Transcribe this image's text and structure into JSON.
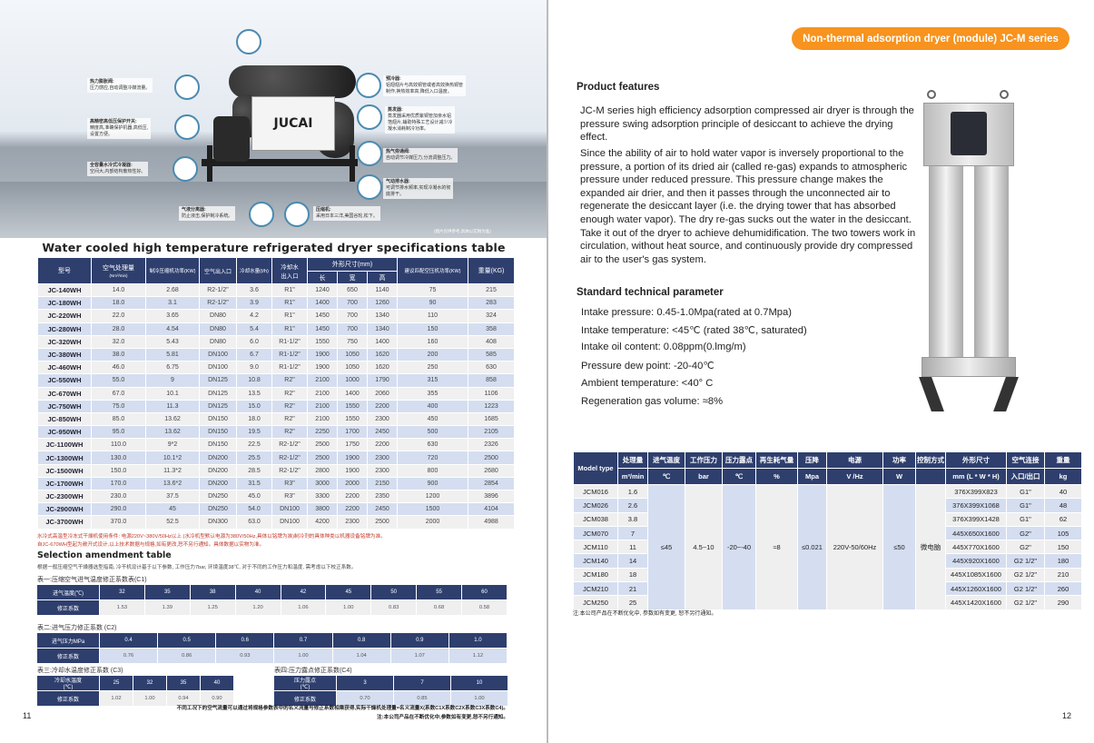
{
  "left_page": {
    "hero": {
      "logo": "JUCAI",
      "callouts": [
        {
          "title": "热力膨胀阀:",
          "text": "压力感应,自动调整冷媒流量。"
        },
        {
          "title": "高精密高低压保护开关:",
          "text": "精度高,准确保护机器,高低压,\n设置方便。"
        },
        {
          "title": "全容量水冷式冷凝器:",
          "text": "空间大,内部结构散热性好。"
        },
        {
          "title": "气液分离器:",
          "text": "防止液击,保护制冷系统。"
        },
        {
          "title": "压缩机:",
          "text": "采用日本三洋,美国谷轮,松下。"
        },
        {
          "title": "预冷器:",
          "text": "铝翅翅片与高效铜管或者高效换热铜管\n制作,换热效率高,降低入口温度。"
        },
        {
          "title": "蒸发器:",
          "text": "蒸发器采用优质紫铜管加亲水铝\n箔翅片,辅助特殊工艺设计减少冷\n凝水消耗制冷功率。"
        },
        {
          "title": "热气旁通阀:",
          "text": "自动调节冷媒压力,分流调整压力。"
        },
        {
          "title": "气动排水器:",
          "text": "可调节排水频率,实现冷凝水的彻\n底排干。"
        }
      ],
      "image_note": "(图片仅供参考,具体以实物为准)"
    },
    "spec_title": "Water cooled high temperature refrigerated dryer specifications table",
    "spec_headers": {
      "model": "型号",
      "air": "空气处理量",
      "air_unit": "(Nm³/min)",
      "power": "制冷压缩机功率(KW)",
      "port": "空气出入口",
      "water": "冷却水量(t/h)",
      "water_port": "冷却水\n出入口",
      "dims": "外形尺寸(mm)",
      "l": "长",
      "w": "宽",
      "h": "高",
      "comp": "建议匹配空压机功率(KW)",
      "weight": "重量(KG)"
    },
    "spec_rows": [
      [
        "JC-140WH",
        "14.0",
        "2.68",
        "R2-1/2\"",
        "3.6",
        "R1\"",
        "1240",
        "650",
        "1140",
        "75",
        "215"
      ],
      [
        "JC-180WH",
        "18.0",
        "3.1",
        "R2-1/2\"",
        "3.9",
        "R1\"",
        "1400",
        "700",
        "1260",
        "90",
        "283"
      ],
      [
        "JC-220WH",
        "22.0",
        "3.65",
        "DN80",
        "4.2",
        "R1\"",
        "1450",
        "700",
        "1340",
        "110",
        "324"
      ],
      [
        "JC-280WH",
        "28.0",
        "4.54",
        "DN80",
        "5.4",
        "R1\"",
        "1450",
        "700",
        "1340",
        "150",
        "358"
      ],
      [
        "JC-320WH",
        "32.0",
        "5.43",
        "DN80",
        "6.0",
        "R1-1/2\"",
        "1550",
        "750",
        "1400",
        "160",
        "408"
      ],
      [
        "JC-380WH",
        "38.0",
        "5.81",
        "DN100",
        "6.7",
        "R1-1/2\"",
        "1900",
        "1050",
        "1620",
        "200",
        "585"
      ],
      [
        "JC-460WH",
        "46.0",
        "6.75",
        "DN100",
        "9.0",
        "R1-1/2\"",
        "1900",
        "1050",
        "1620",
        "250",
        "630"
      ],
      [
        "JC-550WH",
        "55.0",
        "9",
        "DN125",
        "10.8",
        "R2\"",
        "2100",
        "1000",
        "1790",
        "315",
        "858"
      ],
      [
        "JC-670WH",
        "67.0",
        "10.1",
        "DN125",
        "13.5",
        "R2\"",
        "2100",
        "1400",
        "2060",
        "355",
        "1106"
      ],
      [
        "JC-750WH",
        "75.0",
        "11.3",
        "DN125",
        "15.0",
        "R2\"",
        "2100",
        "1550",
        "2200",
        "400",
        "1223"
      ],
      [
        "JC-850WH",
        "85.0",
        "13.62",
        "DN150",
        "18.0",
        "R2\"",
        "2100",
        "1550",
        "2300",
        "450",
        "1685"
      ],
      [
        "JC-950WH",
        "95.0",
        "13.62",
        "DN150",
        "19.5",
        "R2\"",
        "2250",
        "1700",
        "2450",
        "500",
        "2105"
      ],
      [
        "JC-1100WH",
        "110.0",
        "9*2",
        "DN150",
        "22.5",
        "R2-1/2\"",
        "2500",
        "1750",
        "2200",
        "630",
        "2326"
      ],
      [
        "JC-1300WH",
        "130.0",
        "10.1*2",
        "DN200",
        "25.5",
        "R2-1/2\"",
        "2500",
        "1900",
        "2300",
        "720",
        "2500"
      ],
      [
        "JC-1500WH",
        "150.0",
        "11.3*2",
        "DN200",
        "28.5",
        "R2-1/2\"",
        "2800",
        "1900",
        "2300",
        "800",
        "2680"
      ],
      [
        "JC-1700WH",
        "170.0",
        "13.6*2",
        "DN200",
        "31.5",
        "R3\"",
        "3000",
        "2000",
        "2150",
        "900",
        "2854"
      ],
      [
        "JC-2300WH",
        "230.0",
        "37.5",
        "DN250",
        "45.0",
        "R3\"",
        "3300",
        "2200",
        "2350",
        "1200",
        "3896"
      ],
      [
        "JC-2900WH",
        "290.0",
        "45",
        "DN250",
        "54.0",
        "DN100",
        "3800",
        "2200",
        "2450",
        "1500",
        "4104"
      ],
      [
        "JC-3700WH",
        "370.0",
        "52.5",
        "DN300",
        "63.0",
        "DN100",
        "4200",
        "2300",
        "2500",
        "2000",
        "4988"
      ]
    ],
    "spec_notes": [
      "水冷式高温型冷冻式干燥机使用条件: 电源220V~380V/50Hz以上 (水冷机型默认电源为380V/50Hz,具体以铭牌为准)制冷剂的具体种类以机器设备铭牌为准。",
      "自JC-670WH型起为敞开式设计,以上技术数据与规格,如有更改,恕不另行通知。具体数据以实物为准。"
    ],
    "selection_title": "Selection amendment table",
    "selection_intro": "根据一般压缩空气干燥器选型指南, 冷干机设计基于以下参数, 工作压力7bar, 环境温度38℃, 对于不同的工作压力和温度, 需考虑以下校正系数。",
    "c1": {
      "caption": "表一:压缩空气进气温度修正系数表(C1)",
      "head": "进气温度(℃)",
      "row": "修正系数",
      "keys": [
        "32",
        "35",
        "38",
        "40",
        "42",
        "45",
        "50",
        "55",
        "60"
      ],
      "vals": [
        "1.53",
        "1.39",
        "1.25",
        "1.20",
        "1.06",
        "1.00",
        "0.83",
        "0.68",
        "0.58"
      ]
    },
    "c2": {
      "caption": "表二:进气压力修正系数 (C2)",
      "head": "进气压力MPa",
      "row": "修正系数",
      "keys": [
        "0.4",
        "0.5",
        "0.6",
        "0.7",
        "0.8",
        "0.9",
        "1.0"
      ],
      "vals": [
        "0.76",
        "0.86",
        "0.93",
        "1.00",
        "1.04",
        "1.07",
        "1.12"
      ]
    },
    "c3": {
      "caption": "表三:冷却水温度修正系数 (C3)",
      "head": "冷却水温度\n(℃)",
      "row": "修正系数",
      "keys": [
        "25",
        "32",
        "35",
        "40"
      ],
      "vals": [
        "1.02",
        "1.00",
        "0.94",
        "0.90"
      ]
    },
    "c4": {
      "caption": "表四:压力露点修正系数(C4)",
      "head": "压力露点\n(℃)",
      "row": "修正系数",
      "keys": [
        "3",
        "7",
        "10"
      ],
      "vals": [
        "0.70",
        "0.85",
        "1.00"
      ]
    },
    "footer_1": "不同工况下的空气流量可以通过将规格参数表中的名义流量与修正系数相乘获得,实际干燥机处理量=名义流量X(系数C1X系数C2X系数C3X系数C4)。",
    "footer_2": "注:本公司产品在不断优化中,参数如有变更,恕不另行通知。",
    "page_number": "11"
  },
  "right_page": {
    "badge": "Non-thermal adsorption dryer (module) JC-M series",
    "features_title": "Product features",
    "features_paragraphs": [
      "JC-M series high efficiency adsorption compressed air dryer is through the pressure swing adsorption principle of desiccant to achieve the drying effect.",
      "Since the ability of air to hold water vapor is inversely proportional to the pressure, a portion of its dried air (called re-gas) expands to atmospheric pressure under reduced pressure. This pressure change makes the expanded air drier, and then it passes through the unconnected air to regenerate the desiccant layer (i.e. the drying tower that has absorbed enough water vapor). The dry re-gas sucks out the water in the desiccant. Take it out of the dryer to achieve dehumidification. The two towers work in circulation, without heat source, and continuously provide dry compressed air to the user's gas system."
    ],
    "params_title": "Standard technical parameter",
    "params": [
      "Intake pressure: 0.45-1.0Mpa(rated at 0.7Mpa)",
      "Intake temperature: <45℃ (rated 38℃, saturated)",
      "Intake oil content: 0.08ppm(0.lmg/m)",
      "Pressure dew point: -20-40℃",
      "Ambient temperature: <40° C",
      "Regeneration gas volume: ≈8%"
    ],
    "table": {
      "headers": [
        "Model type",
        "处理量",
        "进气温度",
        "工作压力",
        "压力露点",
        "再生耗气量",
        "压降",
        "电源",
        "功率",
        "控制方式",
        "外形尺寸",
        "空气连接",
        "重量"
      ],
      "units": [
        "m³/min",
        "℃",
        "bar",
        "℃",
        "%",
        "Mpa",
        "V /Hz",
        "W",
        "",
        "mm (L * W * H)",
        "入口/出口",
        "kg"
      ],
      "shared": [
        "≤45",
        "4.5~10",
        "-20~-40",
        "≈8",
        "≤0.021",
        "220V-50/60Hz",
        "≤50",
        "微电脑"
      ],
      "rows": [
        [
          "JCM016",
          "1.6",
          "376X399X823",
          "G1\"",
          "40"
        ],
        [
          "JCM026",
          "2.6",
          "376X399X1068",
          "G1\"",
          "48"
        ],
        [
          "JCM038",
          "3.8",
          "376X399X1428",
          "G1\"",
          "62"
        ],
        [
          "JCM070",
          "7",
          "445X650X1600",
          "G2\"",
          "105"
        ],
        [
          "JCM110",
          "11",
          "445X770X1600",
          "G2\"",
          "150"
        ],
        [
          "JCM140",
          "14",
          "445X920X1600",
          "G2 1/2\"",
          "180"
        ],
        [
          "JCM180",
          "18",
          "445X1085X1600",
          "G2 1/2\"",
          "210"
        ],
        [
          "JCM210",
          "21",
          "445X1260X1600",
          "G2 1/2\"",
          "260"
        ],
        [
          "JCM250",
          "25",
          "445X1420X1600",
          "G2 1/2\"",
          "290"
        ]
      ],
      "note": "注:本公司产品在不断优化中, 参数如有变更, 恕不另行通知。"
    },
    "page_number": "12"
  },
  "colors": {
    "table_header": "#2e3f6e",
    "row_blue": "#d5def0",
    "row_grey": "#f0f0f0",
    "badge": "#f7931e"
  }
}
